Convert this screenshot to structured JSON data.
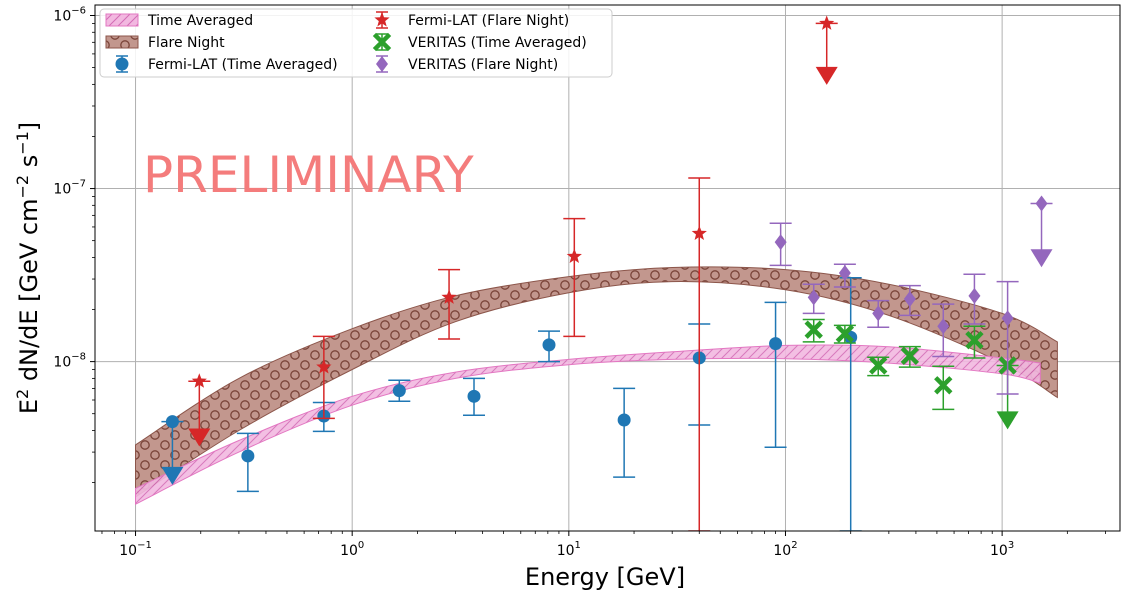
{
  "chart_data": {
    "type": "scatter",
    "xlabel": "Energy [GeV]",
    "ylabel_main": "E",
    "ylabel_sup1": "2",
    "ylabel_mid": " dN/dE [GeV cm",
    "ylabel_sup2": "−2",
    "ylabel_mid2": " s",
    "ylabel_sup3": "−1",
    "ylabel_end": "]",
    "xscale": "log",
    "yscale": "log",
    "xlim": [
      0.065,
      3500
    ],
    "ylim": [
      1.05e-09,
      1.15e-06
    ],
    "grid": true,
    "legend_position": "top-left",
    "watermark": "PRELIMINARY",
    "x_ticks": [
      {
        "value": 0.1,
        "base": "10",
        "exp": "−1"
      },
      {
        "value": 1,
        "base": "10",
        "exp": "0"
      },
      {
        "value": 10,
        "base": "10",
        "exp": "1"
      },
      {
        "value": 100,
        "base": "10",
        "exp": "2"
      },
      {
        "value": 1000,
        "base": "10",
        "exp": "3"
      }
    ],
    "y_ticks": [
      {
        "value": 1e-08,
        "base": "10",
        "exp": "−8"
      },
      {
        "value": 1e-07,
        "base": "10",
        "exp": "−7"
      },
      {
        "value": 1e-06,
        "base": "10",
        "exp": "−6"
      }
    ],
    "bands": [
      {
        "name": "Time Averaged",
        "color": "#e377c2",
        "pattern": "hatch",
        "x": [
          0.1,
          0.3,
          1,
          3,
          10,
          30,
          100,
          300,
          1000,
          1500
        ],
        "lower": [
          1.5e-09,
          3e-09,
          5.6e-09,
          8e-09,
          9.6e-09,
          1.03e-08,
          1.04e-08,
          9.8e-09,
          8.5e-09,
          7.5e-09
        ],
        "upper": [
          1.85e-09,
          3.5e-09,
          6.3e-09,
          8.7e-09,
          1.03e-08,
          1.14e-08,
          1.24e-08,
          1.22e-08,
          1.05e-08,
          9.8e-09
        ]
      },
      {
        "name": "Flare Night",
        "color": "#8c564b",
        "pattern": "circles",
        "x": [
          0.1,
          0.3,
          1,
          3,
          10,
          30,
          100,
          300,
          1000,
          1800
        ],
        "lower": [
          1.65e-09,
          4e-09,
          9e-09,
          1.7e-08,
          2.5e-08,
          2.9e-08,
          2.6e-08,
          1.85e-08,
          9.8e-09,
          6.2e-09
        ],
        "upper": [
          3.3e-09,
          8e-09,
          1.55e-08,
          2.4e-08,
          3.1e-08,
          3.5e-08,
          3.4e-08,
          2.8e-08,
          1.9e-08,
          1.3e-08
        ]
      }
    ],
    "series": [
      {
        "name": "Fermi-LAT (Time Averaged)",
        "color": "#1f77b4",
        "marker": "circle",
        "points": [
          {
            "x": 0.148,
            "y": 4.5e-09,
            "ylo": 2.1e-09,
            "yhi": 4.5e-09,
            "ul": true
          },
          {
            "x": 0.33,
            "y": 2.85e-09,
            "ylo": 1.78e-09,
            "yhi": 3.85e-09
          },
          {
            "x": 0.74,
            "y": 4.85e-09,
            "ylo": 3.95e-09,
            "yhi": 5.8e-09
          },
          {
            "x": 1.65,
            "y": 6.8e-09,
            "ylo": 5.9e-09,
            "yhi": 7.8e-09
          },
          {
            "x": 3.65,
            "y": 6.3e-09,
            "ylo": 4.9e-09,
            "yhi": 8e-09
          },
          {
            "x": 8.1,
            "y": 1.25e-08,
            "ylo": 1e-08,
            "yhi": 1.5e-08
          },
          {
            "x": 18,
            "y": 4.6e-09,
            "ylo": 2.15e-09,
            "yhi": 7e-09
          },
          {
            "x": 40,
            "y": 1.05e-08,
            "ylo": 4.3e-09,
            "yhi": 1.65e-08
          },
          {
            "x": 90,
            "y": 1.27e-08,
            "ylo": 3.2e-09,
            "yhi": 2.2e-08
          },
          {
            "x": 200,
            "y": 1.38e-08,
            "ylo": 1.05e-09,
            "yhi": 3.05e-08
          }
        ]
      },
      {
        "name": "Fermi-LAT (Flare Night)",
        "color": "#d62728",
        "marker": "star",
        "points": [
          {
            "x": 0.197,
            "y": 7.7e-09,
            "ylo": 3.5e-09,
            "yhi": 7.7e-09,
            "ul": true
          },
          {
            "x": 0.74,
            "y": 9.3e-09,
            "ylo": 4.7e-09,
            "yhi": 1.4e-08
          },
          {
            "x": 2.8,
            "y": 2.35e-08,
            "ylo": 1.35e-08,
            "yhi": 3.4e-08
          },
          {
            "x": 10.6,
            "y": 4.05e-08,
            "ylo": 1.4e-08,
            "yhi": 6.7e-08
          },
          {
            "x": 40,
            "y": 5.5e-08,
            "ylo": 1.05e-09,
            "yhi": 1.15e-07
          },
          {
            "x": 155,
            "y": 9e-07,
            "ylo": 4.3e-07,
            "yhi": 9e-07,
            "ul": true
          }
        ]
      },
      {
        "name": "VERITAS (Time Averaged)",
        "color": "#2ca02c",
        "marker": "x",
        "points": [
          {
            "x": 135,
            "y": 1.53e-08,
            "ylo": 1.3e-08,
            "yhi": 1.75e-08
          },
          {
            "x": 188,
            "y": 1.45e-08,
            "ylo": 1.28e-08,
            "yhi": 1.62e-08
          },
          {
            "x": 268,
            "y": 9.5e-09,
            "ylo": 8.3e-09,
            "yhi": 1.06e-08
          },
          {
            "x": 375,
            "y": 1.08e-08,
            "ylo": 9.3e-09,
            "yhi": 1.22e-08
          },
          {
            "x": 535,
            "y": 7.3e-09,
            "ylo": 5.3e-09,
            "yhi": 9.4e-09
          },
          {
            "x": 745,
            "y": 1.33e-08,
            "ylo": 1.05e-08,
            "yhi": 1.6e-08
          },
          {
            "x": 1060,
            "y": 9.5e-09,
            "ylo": 4.4e-09,
            "yhi": 9.5e-09,
            "ul": true
          }
        ]
      },
      {
        "name": "VERITAS (Flare Night)",
        "color": "#9467bd",
        "marker": "diamond",
        "points": [
          {
            "x": 95,
            "y": 4.9e-08,
            "ylo": 3.6e-08,
            "yhi": 6.3e-08
          },
          {
            "x": 135,
            "y": 2.35e-08,
            "ylo": 1.9e-08,
            "yhi": 2.8e-08
          },
          {
            "x": 188,
            "y": 3.25e-08,
            "ylo": 2.7e-08,
            "yhi": 3.65e-08
          },
          {
            "x": 268,
            "y": 1.9e-08,
            "ylo": 1.58e-08,
            "yhi": 2.25e-08
          },
          {
            "x": 375,
            "y": 2.3e-08,
            "ylo": 1.85e-08,
            "yhi": 2.75e-08
          },
          {
            "x": 535,
            "y": 1.6e-08,
            "ylo": 1.07e-08,
            "yhi": 2.15e-08
          },
          {
            "x": 745,
            "y": 2.4e-08,
            "ylo": 1.65e-08,
            "yhi": 3.2e-08
          },
          {
            "x": 1060,
            "y": 1.78e-08,
            "ylo": 6.5e-09,
            "yhi": 2.9e-08
          },
          {
            "x": 1520,
            "y": 8.2e-08,
            "ylo": 3.8e-08,
            "yhi": 8.2e-08,
            "ul": true
          }
        ]
      }
    ],
    "legend": {
      "columns": [
        [
          "Time Averaged",
          "Flare Night",
          "Fermi-LAT (Time Averaged)"
        ],
        [
          "Fermi-LAT (Flare Night)",
          "VERITAS (Time Averaged)",
          "VERITAS (Flare Night)"
        ]
      ]
    }
  }
}
